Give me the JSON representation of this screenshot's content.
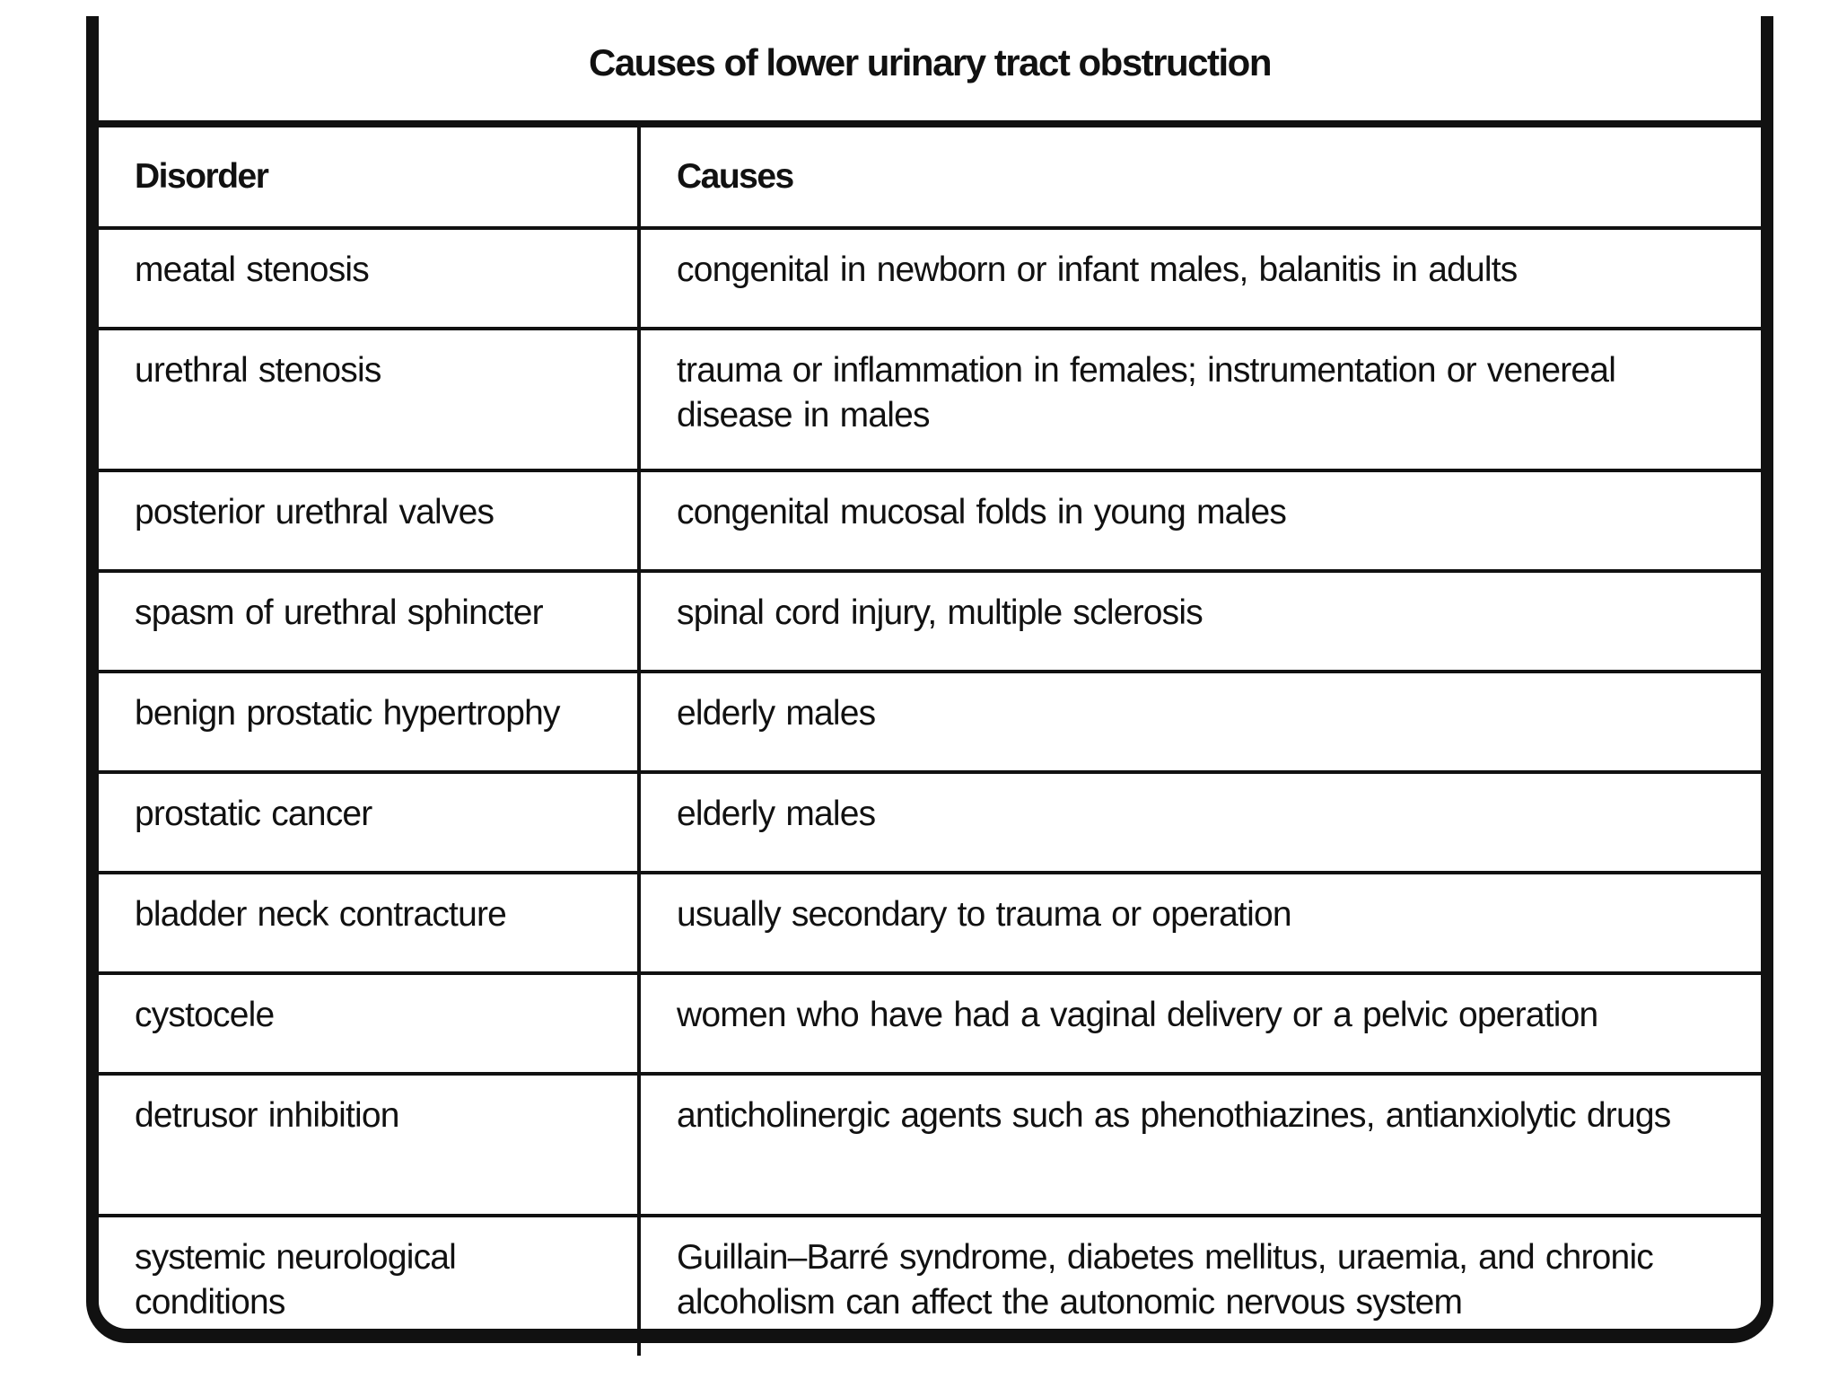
{
  "title": "Causes of lower urinary tract obstruction",
  "headers": {
    "disorder": "Disorder",
    "causes": "Causes"
  },
  "rows": [
    {
      "disorder": "meatal stenosis",
      "causes": "congenital in newborn or infant males, balanitis in adults"
    },
    {
      "disorder": "urethral stenosis",
      "causes": "trauma or inflammation in females; instrumentation or venereal disease in males"
    },
    {
      "disorder": "posterior urethral valves",
      "causes": "congenital mucosal folds in young males"
    },
    {
      "disorder": "spasm of urethral sphincter",
      "causes": "spinal cord injury, multiple sclerosis"
    },
    {
      "disorder": "benign prostatic hypertrophy",
      "causes": "elderly males"
    },
    {
      "disorder": "prostatic cancer",
      "causes": "elderly males"
    },
    {
      "disorder": "bladder neck contracture",
      "causes": "usually secondary to trauma or operation"
    },
    {
      "disorder": "cystocele",
      "causes": "women who have had a vaginal delivery or a pelvic operation"
    },
    {
      "disorder": "detrusor inhibition",
      "causes": "anticholinergic agents such as phenothiazines, antianxiolytic drugs"
    },
    {
      "disorder": "systemic neurological conditions",
      "causes": "Guillain–Barré syndrome, diabetes mellitus, uraemia, and chronic alcoholism can affect the autonomic nervous system"
    }
  ]
}
